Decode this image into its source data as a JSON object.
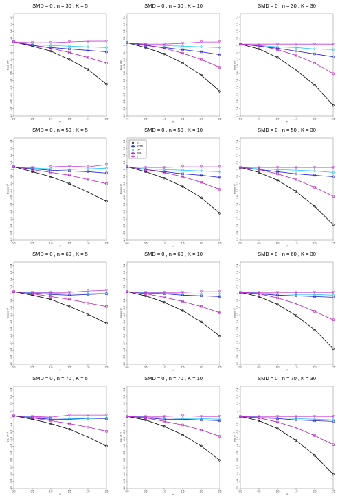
{
  "chart_data": {
    "type": "line",
    "x": [
      0,
      0.5,
      1,
      1.5,
      2,
      2.5
    ],
    "xticks": [
      "0.0",
      "0.5",
      "1.0",
      "1.5",
      "2.0",
      "2.5"
    ],
    "yticks": [
      "0.4",
      "0.3",
      "0.2",
      "0.1",
      "0",
      "-0.1",
      "-0.2",
      "-0.3",
      "-0.4",
      "-0.5",
      "-0.6",
      "-0.7",
      "-0.8",
      "-0.9",
      "-1.0"
    ],
    "ylim": [
      -1.0,
      0.45
    ],
    "xlim": [
      0,
      2.5
    ],
    "xlabel": "τ²",
    "ylabel": "Bias of τ²",
    "legend": {
      "placement": "top-left",
      "entries": [
        "DL",
        "REML",
        "MP",
        "KDB",
        "J"
      ]
    },
    "series_styles": [
      {
        "name": "DL",
        "color": "#000000",
        "marker": "circle"
      },
      {
        "name": "REML",
        "color": "#1b1bcc",
        "marker": "square"
      },
      {
        "name": "MP",
        "color": "#1ec8ee",
        "marker": "diamond"
      },
      {
        "name": "KDB",
        "color": "#b316b3",
        "marker": "square"
      },
      {
        "name": "J",
        "color": "#c23cd6",
        "marker": "triangle-down"
      }
    ],
    "panels": [
      {
        "title": "SMD = 0 , n = 30 , K = 5",
        "legend": false,
        "series": [
          {
            "name": "DL",
            "values": [
              0.05,
              -0.01,
              -0.08,
              -0.2,
              -0.34,
              -0.55
            ]
          },
          {
            "name": "REML",
            "values": [
              0.05,
              0.0,
              -0.03,
              -0.05,
              -0.07,
              -0.09
            ]
          },
          {
            "name": "MP",
            "values": [
              0.05,
              0.01,
              0.0,
              -0.01,
              -0.02,
              -0.03
            ]
          },
          {
            "name": "KDB",
            "values": [
              0.05,
              0.01,
              -0.04,
              -0.1,
              -0.17,
              -0.25
            ]
          },
          {
            "name": "J",
            "values": [
              0.05,
              0.04,
              0.04,
              0.05,
              0.06,
              0.06
            ]
          }
        ]
      },
      {
        "title": "SMD = 0 , n = 30 , K = 10",
        "legend": false,
        "series": [
          {
            "name": "DL",
            "values": [
              0.04,
              -0.03,
              -0.12,
              -0.25,
              -0.42,
              -0.65
            ]
          },
          {
            "name": "REML",
            "values": [
              0.04,
              0.0,
              -0.03,
              -0.06,
              -0.09,
              -0.13
            ]
          },
          {
            "name": "MP",
            "values": [
              0.04,
              0.01,
              0.0,
              -0.01,
              -0.02,
              -0.03
            ]
          },
          {
            "name": "KDB",
            "values": [
              0.04,
              0.01,
              -0.04,
              -0.11,
              -0.2,
              -0.31
            ]
          },
          {
            "name": "J",
            "values": [
              0.04,
              0.02,
              0.02,
              0.03,
              0.05,
              0.05
            ]
          }
        ]
      },
      {
        "title": "SMD = 0 , n = 30 , K = 30",
        "legend": false,
        "series": [
          {
            "name": "DL",
            "values": [
              0.02,
              -0.05,
              -0.17,
              -0.35,
              -0.56,
              -0.85
            ]
          },
          {
            "name": "REML",
            "values": [
              0.02,
              -0.01,
              -0.04,
              -0.08,
              -0.12,
              -0.16
            ]
          },
          {
            "name": "MP",
            "values": [
              0.02,
              0.0,
              -0.02,
              -0.03,
              -0.05,
              -0.06
            ]
          },
          {
            "name": "KDB",
            "values": [
              0.02,
              0.0,
              -0.06,
              -0.14,
              -0.25,
              -0.4
            ]
          },
          {
            "name": "J",
            "values": [
              0.02,
              0.02,
              0.02,
              0.02,
              0.02,
              0.02
            ]
          }
        ]
      },
      {
        "title": "SMD = 0 , n = 50 , K = 5",
        "legend": false,
        "series": [
          {
            "name": "DL",
            "values": [
              0.04,
              -0.03,
              -0.1,
              -0.2,
              -0.32,
              -0.45
            ]
          },
          {
            "name": "REML",
            "values": [
              0.04,
              0.01,
              -0.01,
              -0.02,
              -0.03,
              -0.05
            ]
          },
          {
            "name": "MP",
            "values": [
              0.04,
              0.02,
              0.01,
              0.0,
              0.01,
              0.02
            ]
          },
          {
            "name": "KDB",
            "values": [
              0.04,
              0.0,
              -0.04,
              -0.08,
              -0.14,
              -0.2
            ]
          },
          {
            "name": "J",
            "values": [
              0.04,
              0.03,
              0.04,
              0.05,
              0.04,
              0.07
            ]
          }
        ]
      },
      {
        "title": "SMD = 0 , n = 50 , K = 10",
        "legend": true,
        "series": [
          {
            "name": "DL",
            "values": [
              0.04,
              -0.03,
              -0.12,
              -0.24,
              -0.4,
              -0.62
            ]
          },
          {
            "name": "REML",
            "values": [
              0.04,
              0.0,
              -0.03,
              -0.06,
              -0.08,
              -0.11
            ]
          },
          {
            "name": "MP",
            "values": [
              0.04,
              0.01,
              0.0,
              -0.01,
              -0.02,
              -0.03
            ]
          },
          {
            "name": "KDB",
            "values": [
              0.04,
              0.0,
              -0.04,
              -0.1,
              -0.18,
              -0.28
            ]
          },
          {
            "name": "J",
            "values": [
              0.04,
              0.03,
              0.03,
              0.04,
              0.04,
              0.04
            ]
          }
        ]
      },
      {
        "title": "SMD = 0 , n = 50 , K = 30",
        "legend": false,
        "series": [
          {
            "name": "DL",
            "values": [
              0.03,
              -0.04,
              -0.15,
              -0.31,
              -0.52,
              -0.78
            ]
          },
          {
            "name": "REML",
            "values": [
              0.03,
              0.0,
              -0.03,
              -0.06,
              -0.08,
              -0.1
            ]
          },
          {
            "name": "MP",
            "values": [
              0.03,
              0.01,
              0.0,
              -0.01,
              -0.02,
              -0.04
            ]
          },
          {
            "name": "KDB",
            "values": [
              0.03,
              0.0,
              -0.06,
              -0.14,
              -0.25,
              -0.38
            ]
          },
          {
            "name": "J",
            "values": [
              0.03,
              0.03,
              0.03,
              0.03,
              0.03,
              0.03
            ]
          }
        ]
      },
      {
        "title": "SMD = 0 , n = 60 , K = 5",
        "legend": false,
        "series": [
          {
            "name": "DL",
            "values": [
              0.03,
              -0.02,
              -0.08,
              -0.18,
              -0.29,
              -0.42
            ]
          },
          {
            "name": "REML",
            "values": [
              0.03,
              0.01,
              -0.01,
              -0.02,
              -0.01,
              0.0
            ]
          },
          {
            "name": "MP",
            "values": [
              0.03,
              0.01,
              0.01,
              0.0,
              0.0,
              0.01
            ]
          },
          {
            "name": "KDB",
            "values": [
              0.03,
              0.0,
              -0.04,
              -0.08,
              -0.13,
              -0.18
            ]
          },
          {
            "name": "J",
            "values": [
              0.03,
              0.02,
              0.02,
              0.02,
              0.04,
              0.05
            ]
          }
        ]
      },
      {
        "title": "SMD = 0 , n = 60 , K = 10",
        "legend": false,
        "series": [
          {
            "name": "DL",
            "values": [
              0.03,
              -0.03,
              -0.12,
              -0.24,
              -0.4,
              -0.6
            ]
          },
          {
            "name": "REML",
            "values": [
              0.03,
              0.01,
              0.0,
              -0.02,
              -0.03,
              -0.04
            ]
          },
          {
            "name": "MP",
            "values": [
              0.03,
              0.01,
              0.01,
              0.0,
              0.0,
              0.0
            ]
          },
          {
            "name": "KDB",
            "values": [
              0.03,
              0.0,
              -0.05,
              -0.11,
              -0.18,
              -0.27
            ]
          },
          {
            "name": "J",
            "values": [
              0.03,
              0.02,
              0.02,
              0.02,
              0.03,
              0.03
            ]
          }
        ]
      },
      {
        "title": "SMD = 0 , n = 60 , K = 30",
        "legend": false,
        "series": [
          {
            "name": "DL",
            "values": [
              0.02,
              -0.04,
              -0.15,
              -0.31,
              -0.51,
              -0.78
            ]
          },
          {
            "name": "REML",
            "values": [
              0.02,
              0.0,
              -0.02,
              -0.03,
              -0.04,
              -0.05
            ]
          },
          {
            "name": "MP",
            "values": [
              0.02,
              0.01,
              0.0,
              -0.01,
              -0.01,
              -0.02
            ]
          },
          {
            "name": "KDB",
            "values": [
              0.02,
              0.0,
              -0.06,
              -0.14,
              -0.25,
              -0.37
            ]
          },
          {
            "name": "J",
            "values": [
              0.02,
              0.02,
              0.02,
              0.02,
              0.02,
              0.02
            ]
          }
        ]
      },
      {
        "title": "SMD = 0 , n = 70 , K = 5",
        "legend": false,
        "series": [
          {
            "name": "DL",
            "values": [
              0.03,
              -0.02,
              -0.08,
              -0.16,
              -0.27,
              -0.4
            ]
          },
          {
            "name": "REML",
            "values": [
              0.03,
              0.0,
              -0.02,
              -0.02,
              -0.01,
              -0.01
            ]
          },
          {
            "name": "MP",
            "values": [
              0.03,
              0.01,
              0.0,
              -0.01,
              -0.01,
              0.0
            ]
          },
          {
            "name": "KDB",
            "values": [
              0.03,
              0.0,
              -0.04,
              -0.08,
              -0.13,
              -0.19
            ]
          },
          {
            "name": "J",
            "values": [
              0.03,
              0.02,
              0.01,
              0.04,
              0.04,
              0.04
            ]
          }
        ]
      },
      {
        "title": "SMD = 0 , n = 70 , K = 10",
        "legend": false,
        "series": [
          {
            "name": "DL",
            "values": [
              0.02,
              -0.03,
              -0.12,
              -0.24,
              -0.4,
              -0.6
            ]
          },
          {
            "name": "REML",
            "values": [
              0.02,
              0.0,
              -0.02,
              -0.02,
              -0.03,
              -0.04
            ]
          },
          {
            "name": "MP",
            "values": [
              0.02,
              0.01,
              0.0,
              -0.01,
              -0.01,
              -0.02
            ]
          },
          {
            "name": "KDB",
            "values": [
              0.02,
              0.0,
              -0.05,
              -0.1,
              -0.17,
              -0.26
            ]
          },
          {
            "name": "J",
            "values": [
              0.02,
              0.02,
              0.02,
              0.03,
              0.02,
              0.02
            ]
          }
        ]
      },
      {
        "title": "SMD = 0 , n = 70 , K = 30",
        "legend": false,
        "series": [
          {
            "name": "DL",
            "values": [
              0.02,
              -0.04,
              -0.15,
              -0.32,
              -0.53,
              -0.8
            ]
          },
          {
            "name": "REML",
            "values": [
              0.02,
              0.0,
              -0.01,
              -0.03,
              -0.04,
              -0.05
            ]
          },
          {
            "name": "MP",
            "values": [
              0.02,
              0.01,
              0.0,
              -0.01,
              -0.02,
              -0.03
            ]
          },
          {
            "name": "KDB",
            "values": [
              0.02,
              0.0,
              -0.06,
              -0.14,
              -0.25,
              -0.38
            ]
          },
          {
            "name": "J",
            "values": [
              0.02,
              0.02,
              0.02,
              0.02,
              0.02,
              0.02
            ]
          }
        ]
      }
    ]
  }
}
